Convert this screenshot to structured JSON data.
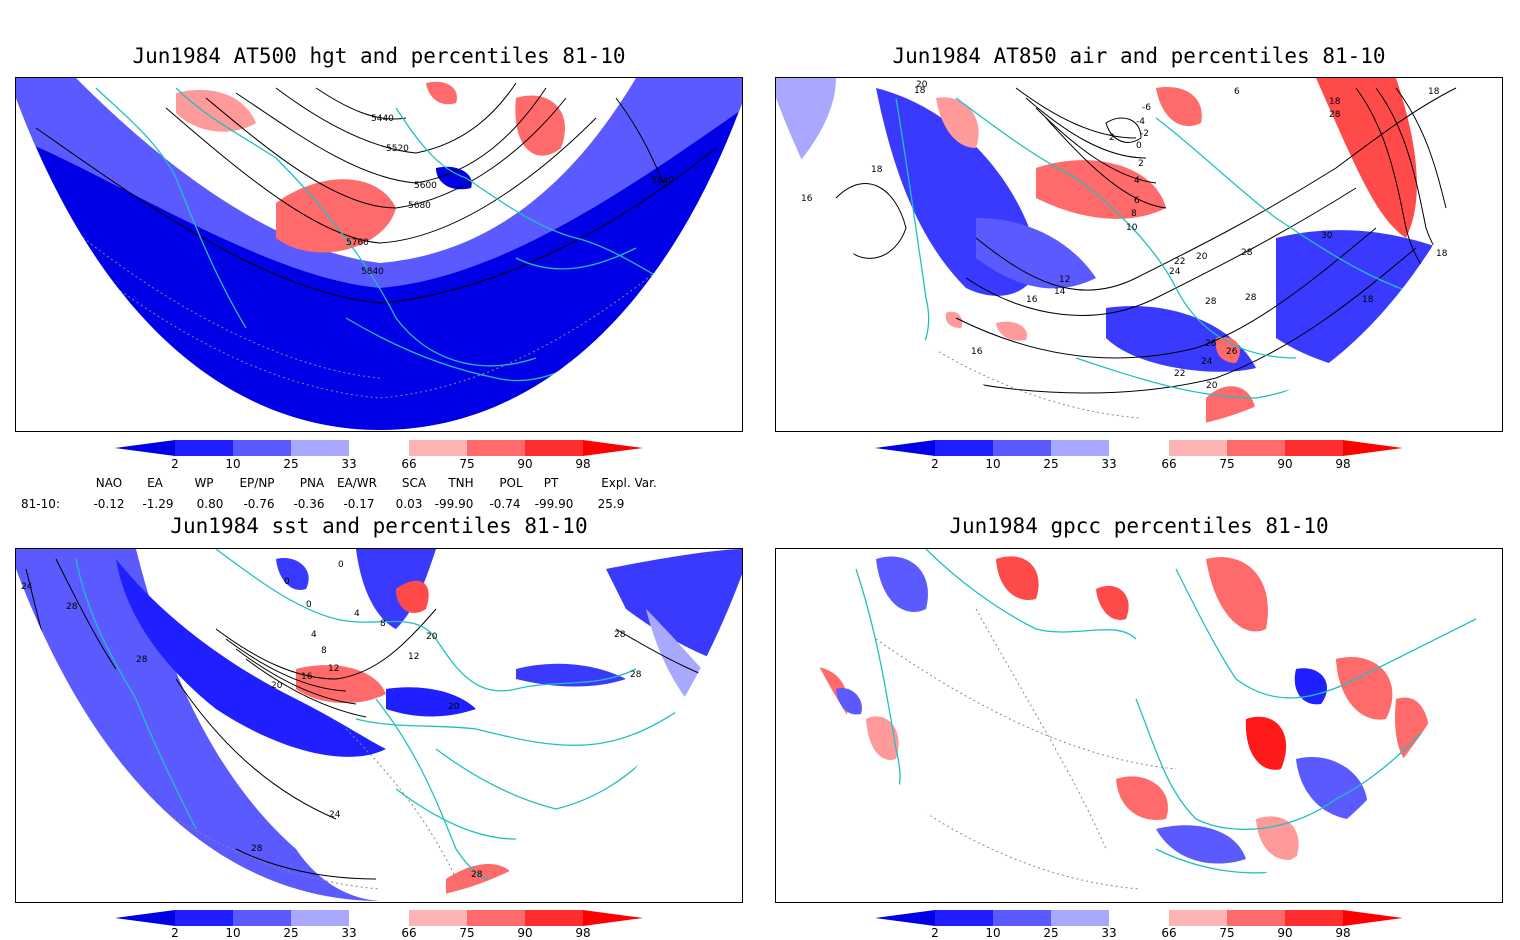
{
  "panels": [
    {
      "id": "p1",
      "title": "Jun1984 AT500 hgt and percentiles 81-10",
      "contour_labels": [
        "5440",
        "5520",
        "5600",
        "5680",
        "5760",
        "5840",
        "5840"
      ]
    },
    {
      "id": "p2",
      "title": "Jun1984 AT850 air and percentiles 81-10",
      "contour_labels": [
        "20",
        "18",
        "-6",
        "-4",
        "-2",
        "2",
        "0",
        "2",
        "4",
        "6",
        "8",
        "10",
        "12",
        "14",
        "16",
        "16",
        "18",
        "16",
        "20",
        "22",
        "24",
        "26",
        "28",
        "28",
        "26",
        "24",
        "22",
        "20",
        "18",
        "28",
        "30",
        "28",
        "18",
        "18",
        "18",
        "6"
      ]
    },
    {
      "id": "p3",
      "title": "Jun1984 sst and percentiles 81-10",
      "contour_labels": [
        "24",
        "28",
        "28",
        "4",
        "8",
        "12",
        "16",
        "20",
        "24",
        "28",
        "12",
        "20",
        "20",
        "28",
        "28",
        "28",
        "0",
        "0",
        "0",
        "4",
        "8"
      ]
    },
    {
      "id": "p4",
      "title": "Jun1984 gpcc percentiles 81-10",
      "contour_labels": []
    }
  ],
  "colorbar": {
    "ticks": [
      "2",
      "10",
      "25",
      "33",
      "66",
      "75",
      "90",
      "98"
    ],
    "colors": {
      "lt2": "#0000e6",
      "c2_10": "#1f1fff",
      "c10_25": "#5a5aff",
      "c25_33": "#a8a8ff",
      "c33_66": "#ffffff",
      "c66_75": "#ffb4b4",
      "c75_90": "#ff6a6a",
      "c90_98": "#ff2e2e",
      "gt98": "#ff0000"
    }
  },
  "indices": {
    "headers": [
      "NAO",
      "EA",
      "WP",
      "EP/NP",
      "PNA",
      "EA/WR",
      "SCA",
      "TNH",
      "POL",
      "PT",
      "Expl. Var."
    ],
    "row_label": "81-10:",
    "values": [
      "-0.12",
      "-1.29",
      "0.80",
      "-0.76",
      "-0.36",
      "-0.17",
      "0.03",
      "-99.90",
      "-0.74",
      "-99.90",
      "25.9"
    ]
  },
  "colors": {
    "coast": "#20c0c0",
    "contour": "#000000",
    "grid": "#888888",
    "blue_dark": "#0000e6",
    "blue_mid": "#3a3aff",
    "blue_light": "#8a8aff",
    "red_light": "#ff9a9a",
    "red_mid": "#ff5a5a",
    "red_dark": "#ff1a1a"
  }
}
